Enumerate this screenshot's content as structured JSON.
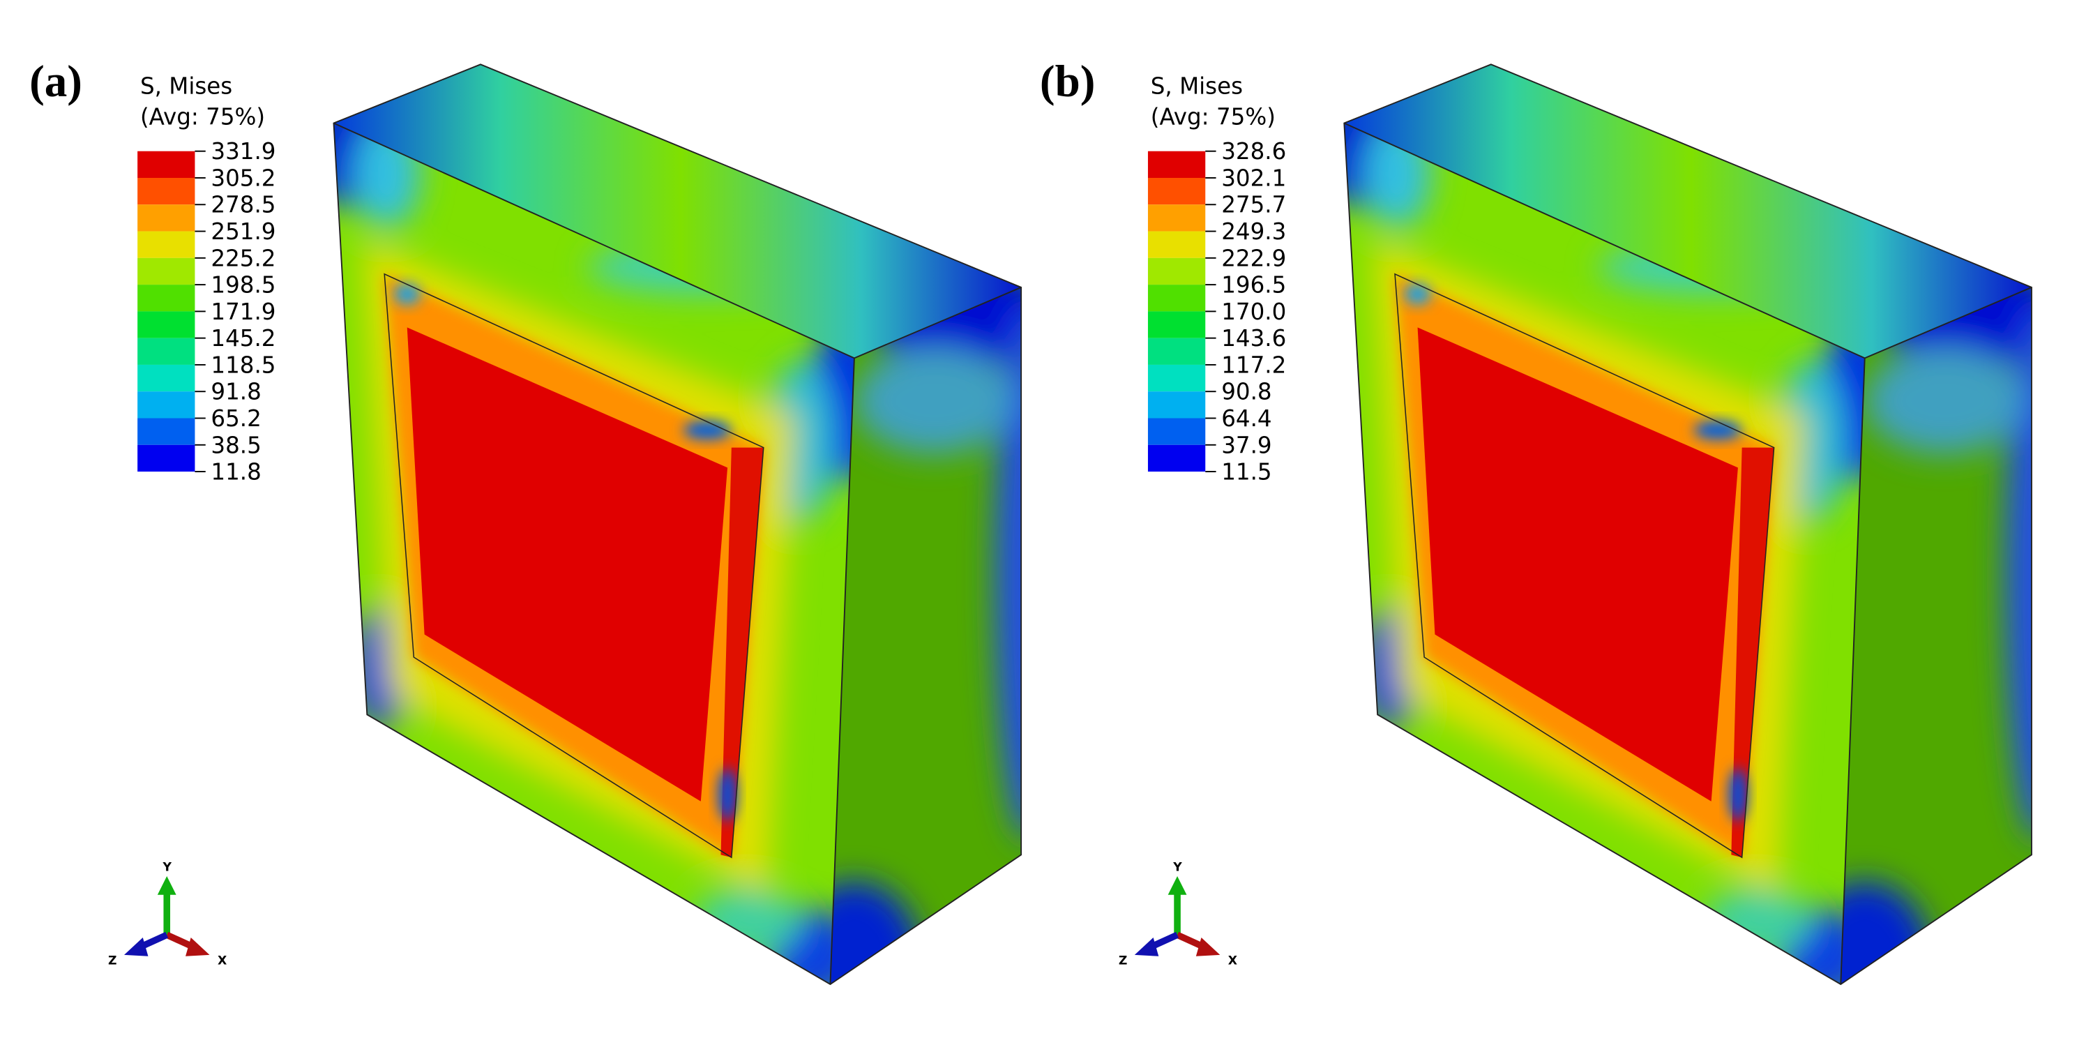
{
  "panels": [
    {
      "label": "(a)",
      "legend_title": "S, Mises",
      "legend_subtitle": "(Avg: 75%)",
      "legend_values": [
        "331.9",
        "305.2",
        "278.5",
        "251.9",
        "225.2",
        "198.5",
        "171.9",
        "145.2",
        "118.5",
        "91.8",
        "65.2",
        "38.5",
        "11.8"
      ],
      "axes": {
        "y": "Y",
        "z": "Z",
        "x": "X"
      }
    },
    {
      "label": "(b)",
      "legend_title": "S, Mises",
      "legend_subtitle": "(Avg: 75%)",
      "legend_values": [
        "328.6",
        "302.1",
        "275.7",
        "249.3",
        "222.9",
        "196.5",
        "170.0",
        "143.6",
        "117.2",
        "90.8",
        "64.4",
        "37.9",
        "11.5"
      ],
      "axes": {
        "y": "Y",
        "z": "Z",
        "x": "X"
      }
    }
  ]
}
